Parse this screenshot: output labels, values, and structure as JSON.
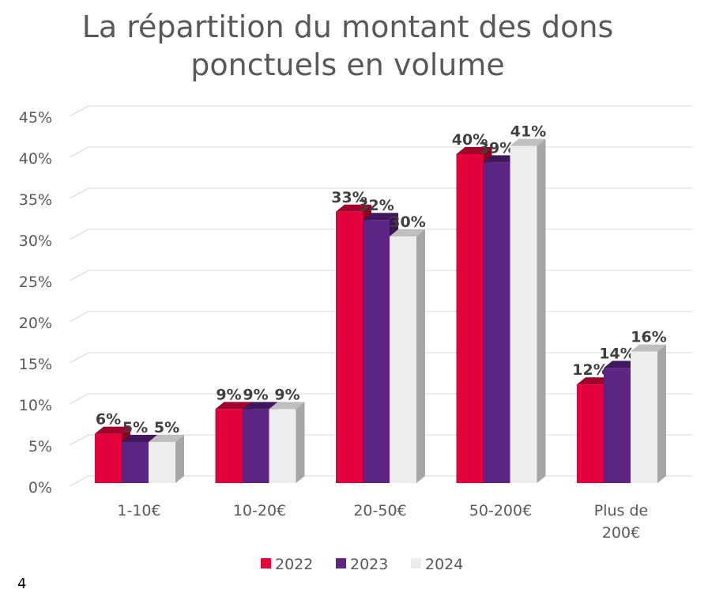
{
  "chart_data": {
    "type": "bar",
    "title": "La répartition du montant des dons ponctuels en volume",
    "categories": [
      "1-10€",
      "10-20€",
      "20-50€",
      "50-200€",
      "Plus de 200€"
    ],
    "series": [
      {
        "name": "2022",
        "color": "#e4003a",
        "values": [
          6,
          9,
          33,
          40,
          12
        ]
      },
      {
        "name": "2023",
        "color": "#5c2483",
        "values": [
          5,
          9,
          32,
          39,
          14
        ]
      },
      {
        "name": "2024",
        "color": "#ededed",
        "values": [
          5,
          9,
          30,
          41,
          16
        ]
      }
    ],
    "data_labels": [
      [
        "6%",
        "9%",
        "33%",
        "40%",
        "12%"
      ],
      [
        "5%",
        "9%",
        "32%",
        "39%",
        "14%"
      ],
      [
        "5%",
        "9%",
        "30%",
        "41%",
        "16%"
      ]
    ],
    "y_ticks": [
      "0%",
      "5%",
      "10%",
      "15%",
      "20%",
      "25%",
      "30%",
      "35%",
      "40%",
      "45%"
    ],
    "ylim": [
      0,
      45
    ],
    "grid": true,
    "legend": "bottom",
    "style": "3d-clustered-column"
  },
  "page_number": "4"
}
